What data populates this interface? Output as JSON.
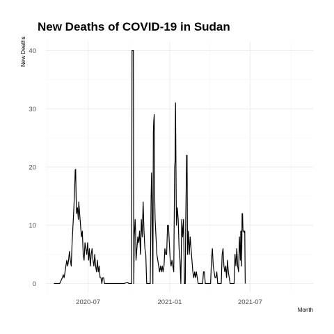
{
  "chart_data": {
    "type": "line",
    "title": "New Deaths of COVID-19 in Sudan",
    "xlabel": "Month",
    "ylabel": "New Deaths",
    "xlim": [
      "2020-03-28",
      "2021-11-20"
    ],
    "ylim": [
      -1.5,
      41.5
    ],
    "x_ticks": [
      {
        "date": "2020-07-01",
        "label": "2020-07"
      },
      {
        "date": "2021-01-01",
        "label": "2021-01"
      },
      {
        "date": "2021-07-01",
        "label": "2021-07"
      }
    ],
    "y_ticks": [
      0,
      10,
      20,
      30,
      40
    ],
    "grid": true,
    "series": [
      {
        "points": [
          [
            "2020-04-15",
            0
          ],
          [
            "2020-04-28",
            0
          ],
          [
            "2020-05-01",
            0.5
          ],
          [
            "2020-05-04",
            1
          ],
          [
            "2020-05-06",
            1.5
          ],
          [
            "2020-05-08",
            1
          ],
          [
            "2020-05-10",
            2
          ],
          [
            "2020-05-12",
            3
          ],
          [
            "2020-05-14",
            4
          ],
          [
            "2020-05-16",
            3
          ],
          [
            "2020-05-18",
            4
          ],
          [
            "2020-05-20",
            5.5
          ],
          [
            "2020-05-22",
            4
          ],
          [
            "2020-05-24",
            3
          ],
          [
            "2020-05-26",
            7
          ],
          [
            "2020-05-28",
            10
          ],
          [
            "2020-05-30",
            13
          ],
          [
            "2020-06-01",
            17
          ],
          [
            "2020-06-02",
            19.5
          ],
          [
            "2020-06-03",
            19.6
          ],
          [
            "2020-06-04",
            15
          ],
          [
            "2020-06-05",
            12
          ],
          [
            "2020-06-07",
            13
          ],
          [
            "2020-06-09",
            11
          ],
          [
            "2020-06-10",
            14
          ],
          [
            "2020-06-12",
            12
          ],
          [
            "2020-06-14",
            10
          ],
          [
            "2020-06-16",
            8
          ],
          [
            "2020-06-18",
            9
          ],
          [
            "2020-06-20",
            5
          ],
          [
            "2020-06-22",
            4
          ],
          [
            "2020-06-24",
            7
          ],
          [
            "2020-06-26",
            6
          ],
          [
            "2020-06-28",
            5
          ],
          [
            "2020-06-30",
            7
          ],
          [
            "2020-07-02",
            4
          ],
          [
            "2020-07-04",
            6
          ],
          [
            "2020-07-06",
            3
          ],
          [
            "2020-07-08",
            5
          ],
          [
            "2020-07-10",
            6
          ],
          [
            "2020-07-12",
            4
          ],
          [
            "2020-07-14",
            3
          ],
          [
            "2020-07-16",
            5
          ],
          [
            "2020-07-18",
            3
          ],
          [
            "2020-07-20",
            2
          ],
          [
            "2020-07-22",
            4
          ],
          [
            "2020-07-24",
            2
          ],
          [
            "2020-07-26",
            3
          ],
          [
            "2020-07-28",
            1
          ],
          [
            "2020-07-30",
            1
          ],
          [
            "2020-08-01",
            0
          ],
          [
            "2020-08-03",
            1
          ],
          [
            "2020-08-05",
            1
          ],
          [
            "2020-08-07",
            0
          ],
          [
            "2020-08-10",
            0
          ],
          [
            "2020-08-20",
            0
          ],
          [
            "2020-09-01",
            0
          ],
          [
            "2020-09-10",
            0
          ],
          [
            "2020-09-20",
            0
          ],
          [
            "2020-09-28",
            0.2
          ],
          [
            "2020-10-01",
            0
          ],
          [
            "2020-10-05",
            0
          ],
          [
            "2020-10-07",
            0
          ],
          [
            "2020-10-08",
            40
          ],
          [
            "2020-10-10",
            40
          ],
          [
            "2020-10-11",
            40
          ],
          [
            "2020-10-12",
            0
          ],
          [
            "2020-10-13",
            8
          ],
          [
            "2020-10-15",
            11
          ],
          [
            "2020-10-16",
            9
          ],
          [
            "2020-10-17",
            4
          ],
          [
            "2020-10-19",
            6
          ],
          [
            "2020-10-21",
            8
          ],
          [
            "2020-10-23",
            7
          ],
          [
            "2020-10-25",
            9
          ],
          [
            "2020-10-27",
            5
          ],
          [
            "2020-10-29",
            11
          ],
          [
            "2020-10-31",
            8
          ],
          [
            "2020-11-02",
            14
          ],
          [
            "2020-11-04",
            9
          ],
          [
            "2020-11-06",
            6
          ],
          [
            "2020-11-08",
            5
          ],
          [
            "2020-11-10",
            0
          ],
          [
            "2020-11-12",
            0
          ],
          [
            "2020-11-14",
            0
          ],
          [
            "2020-11-16",
            0
          ],
          [
            "2020-11-18",
            0
          ],
          [
            "2020-11-20",
            15
          ],
          [
            "2020-11-21",
            19
          ],
          [
            "2020-11-22",
            15
          ],
          [
            "2020-11-24",
            0
          ],
          [
            "2020-11-25",
            26
          ],
          [
            "2020-11-26",
            28
          ],
          [
            "2020-11-27",
            29
          ],
          [
            "2020-11-28",
            15
          ],
          [
            "2020-11-29",
            11
          ],
          [
            "2020-12-01",
            8
          ],
          [
            "2020-12-03",
            5
          ],
          [
            "2020-12-05",
            4
          ],
          [
            "2020-12-07",
            3
          ],
          [
            "2020-12-09",
            2
          ],
          [
            "2020-12-11",
            3
          ],
          [
            "2020-12-13",
            2
          ],
          [
            "2020-12-15",
            3
          ],
          [
            "2020-12-17",
            2
          ],
          [
            "2020-12-19",
            3
          ],
          [
            "2020-12-21",
            6
          ],
          [
            "2020-12-23",
            5
          ],
          [
            "2020-12-25",
            5
          ],
          [
            "2020-12-27",
            10
          ],
          [
            "2020-12-29",
            10
          ],
          [
            "2020-12-31",
            7
          ],
          [
            "2021-01-02",
            4
          ],
          [
            "2021-01-04",
            3
          ],
          [
            "2021-01-06",
            4
          ],
          [
            "2021-01-08",
            3
          ],
          [
            "2021-01-10",
            2
          ],
          [
            "2021-01-12",
            20
          ],
          [
            "2021-01-13",
            21
          ],
          [
            "2021-01-14",
            31
          ],
          [
            "2021-01-15",
            20
          ],
          [
            "2021-01-16",
            10
          ],
          [
            "2021-01-18",
            13
          ],
          [
            "2021-01-20",
            11
          ],
          [
            "2021-01-22",
            6
          ],
          [
            "2021-01-24",
            4
          ],
          [
            "2021-01-26",
            0
          ],
          [
            "2021-01-28",
            11
          ],
          [
            "2021-01-30",
            8
          ],
          [
            "2021-02-01",
            11
          ],
          [
            "2021-02-03",
            0
          ],
          [
            "2021-02-05",
            0
          ],
          [
            "2021-02-06",
            11
          ],
          [
            "2021-02-08",
            22
          ],
          [
            "2021-02-09",
            22
          ],
          [
            "2021-02-10",
            5
          ],
          [
            "2021-02-12",
            9
          ],
          [
            "2021-02-14",
            5
          ],
          [
            "2021-02-16",
            8
          ],
          [
            "2021-02-18",
            6
          ],
          [
            "2021-02-20",
            4
          ],
          [
            "2021-02-22",
            2
          ],
          [
            "2021-02-24",
            1
          ],
          [
            "2021-02-26",
            2
          ],
          [
            "2021-02-28",
            1
          ],
          [
            "2021-03-02",
            2
          ],
          [
            "2021-03-04",
            1
          ],
          [
            "2021-03-06",
            0
          ],
          [
            "2021-03-08",
            0
          ],
          [
            "2021-03-12",
            0
          ],
          [
            "2021-03-16",
            0
          ],
          [
            "2021-03-18",
            2
          ],
          [
            "2021-03-20",
            2
          ],
          [
            "2021-03-22",
            0
          ],
          [
            "2021-03-26",
            0
          ],
          [
            "2021-03-30",
            0
          ],
          [
            "2021-04-03",
            0
          ],
          [
            "2021-04-05",
            4
          ],
          [
            "2021-04-07",
            6
          ],
          [
            "2021-04-09",
            3
          ],
          [
            "2021-04-11",
            2
          ],
          [
            "2021-04-13",
            1
          ],
          [
            "2021-04-15",
            1
          ],
          [
            "2021-04-17",
            2
          ],
          [
            "2021-04-19",
            0
          ],
          [
            "2021-04-23",
            0
          ],
          [
            "2021-04-27",
            0
          ],
          [
            "2021-04-29",
            5
          ],
          [
            "2021-05-01",
            6
          ],
          [
            "2021-05-03",
            3
          ],
          [
            "2021-05-05",
            2
          ],
          [
            "2021-05-07",
            3
          ],
          [
            "2021-05-09",
            1
          ],
          [
            "2021-05-11",
            4
          ],
          [
            "2021-05-13",
            2
          ],
          [
            "2021-05-15",
            1
          ],
          [
            "2021-05-17",
            0
          ],
          [
            "2021-05-20",
            0
          ],
          [
            "2021-05-23",
            0
          ],
          [
            "2021-05-26",
            0
          ],
          [
            "2021-05-28",
            5
          ],
          [
            "2021-05-30",
            3
          ],
          [
            "2021-06-01",
            6
          ],
          [
            "2021-06-03",
            3
          ],
          [
            "2021-06-05",
            2
          ],
          [
            "2021-06-07",
            8
          ],
          [
            "2021-06-09",
            4
          ],
          [
            "2021-06-10",
            9
          ],
          [
            "2021-06-11",
            9
          ],
          [
            "2021-06-12",
            3
          ],
          [
            "2021-06-13",
            12
          ],
          [
            "2021-06-14",
            12
          ],
          [
            "2021-06-15",
            9
          ],
          [
            "2021-06-16",
            9
          ],
          [
            "2021-06-17",
            9
          ],
          [
            "2021-06-18",
            8.7
          ],
          [
            "2021-06-19",
            9
          ],
          [
            "2021-06-20",
            0
          ]
        ]
      }
    ]
  }
}
